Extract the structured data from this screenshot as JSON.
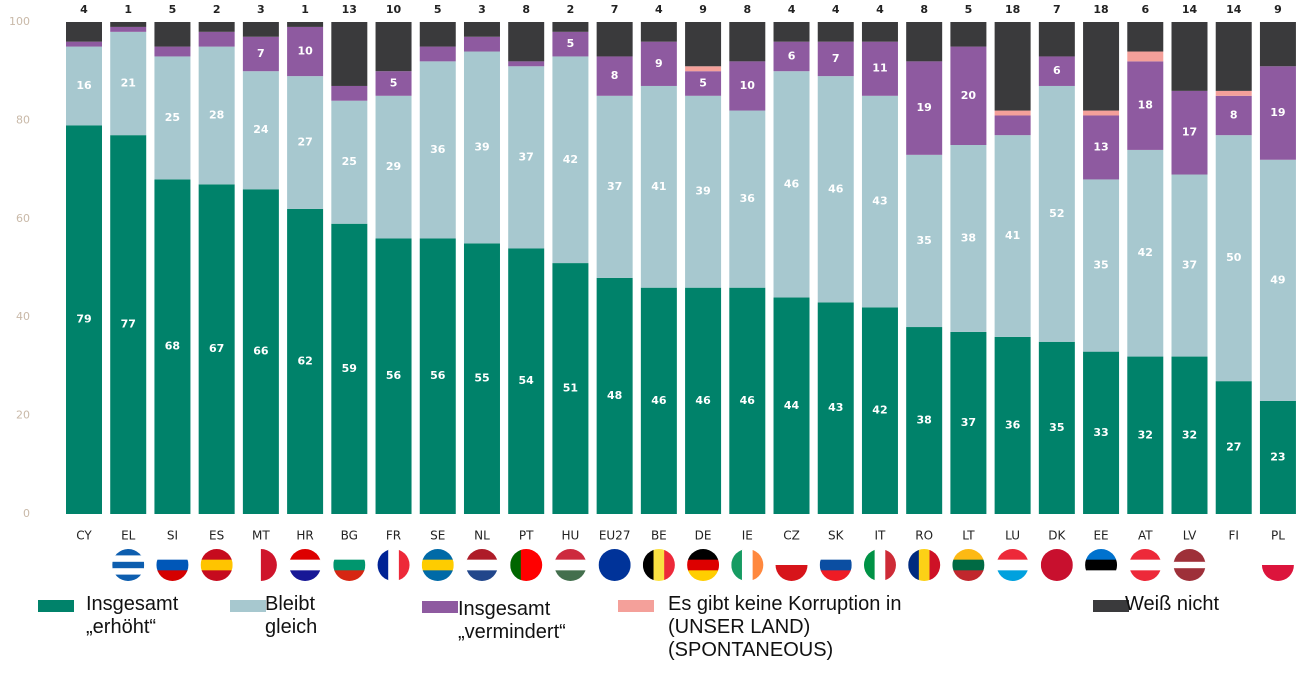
{
  "chart_data": {
    "type": "stacked-bar",
    "categories": [
      "CY",
      "EL",
      "SI",
      "ES",
      "MT",
      "HR",
      "BG",
      "FR",
      "SE",
      "NL",
      "PT",
      "HU",
      "EU27",
      "BE",
      "DE",
      "IE",
      "CZ",
      "SK",
      "IT",
      "RO",
      "LT",
      "LU",
      "DK",
      "EE",
      "AT",
      "LV",
      "FI",
      "PL"
    ],
    "series": [
      {
        "name": "Insgesamt „erhöht“",
        "color": "#00826a",
        "values": [
          79,
          77,
          68,
          67,
          66,
          62,
          59,
          56,
          56,
          55,
          54,
          51,
          48,
          46,
          46,
          46,
          44,
          43,
          42,
          38,
          37,
          36,
          35,
          33,
          32,
          32,
          27,
          23
        ]
      },
      {
        "name": "Bleibt gleich",
        "color": "#a7c8cf",
        "values": [
          16,
          21,
          25,
          28,
          24,
          27,
          25,
          29,
          36,
          39,
          37,
          42,
          37,
          41,
          39,
          36,
          46,
          46,
          43,
          35,
          38,
          41,
          52,
          35,
          42,
          37,
          50,
          49
        ]
      },
      {
        "name": "Insgesamt „vermindert“",
        "color": "#8e5aa0",
        "values": [
          1,
          1,
          2,
          3,
          7,
          10,
          3,
          5,
          3,
          3,
          1,
          5,
          8,
          9,
          5,
          10,
          6,
          7,
          11,
          19,
          20,
          4,
          6,
          13,
          18,
          17,
          8,
          19
        ]
      },
      {
        "name": "Es gibt keine Korruption in (UNSER LAND) (SPONTANEOUS)",
        "color": "#f4a09a",
        "values": [
          0,
          0,
          0,
          0,
          0,
          0,
          0,
          0,
          0,
          0,
          0,
          0,
          0,
          0,
          1,
          0,
          0,
          0,
          0,
          0,
          0,
          1,
          0,
          1,
          2,
          0,
          1,
          0
        ]
      },
      {
        "name": "Weiß nicht",
        "color": "#3a3a3c",
        "values": [
          4,
          1,
          5,
          2,
          3,
          1,
          13,
          10,
          5,
          3,
          8,
          2,
          7,
          4,
          9,
          8,
          4,
          4,
          4,
          8,
          5,
          18,
          7,
          18,
          6,
          14,
          14,
          9
        ]
      }
    ],
    "ylim": [
      0,
      100
    ],
    "yticks": [
      0,
      20,
      40,
      60,
      80,
      100
    ]
  }
}
